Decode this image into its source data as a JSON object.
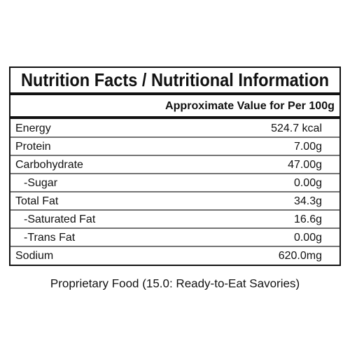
{
  "header": {
    "title": "Nutrition Facts / Nutritional Information",
    "subtitle": "Approximate Value for Per 100g"
  },
  "table": {
    "rows": [
      [
        "Energy",
        "524.7 kcal"
      ],
      [
        "Protein",
        "7.00g"
      ],
      [
        "Carbohydrate",
        "47.00g"
      ],
      [
        "-Sugar",
        "0.00g"
      ],
      [
        "Total Fat",
        "34.3g"
      ],
      [
        "-Saturated Fat",
        "16.6g"
      ],
      [
        "-Trans Fat",
        "0.00g"
      ],
      [
        "Sodium",
        "620.0mg"
      ]
    ]
  },
  "footer": "Proprietary Food (15.0: Ready-to-Eat Savories)"
}
